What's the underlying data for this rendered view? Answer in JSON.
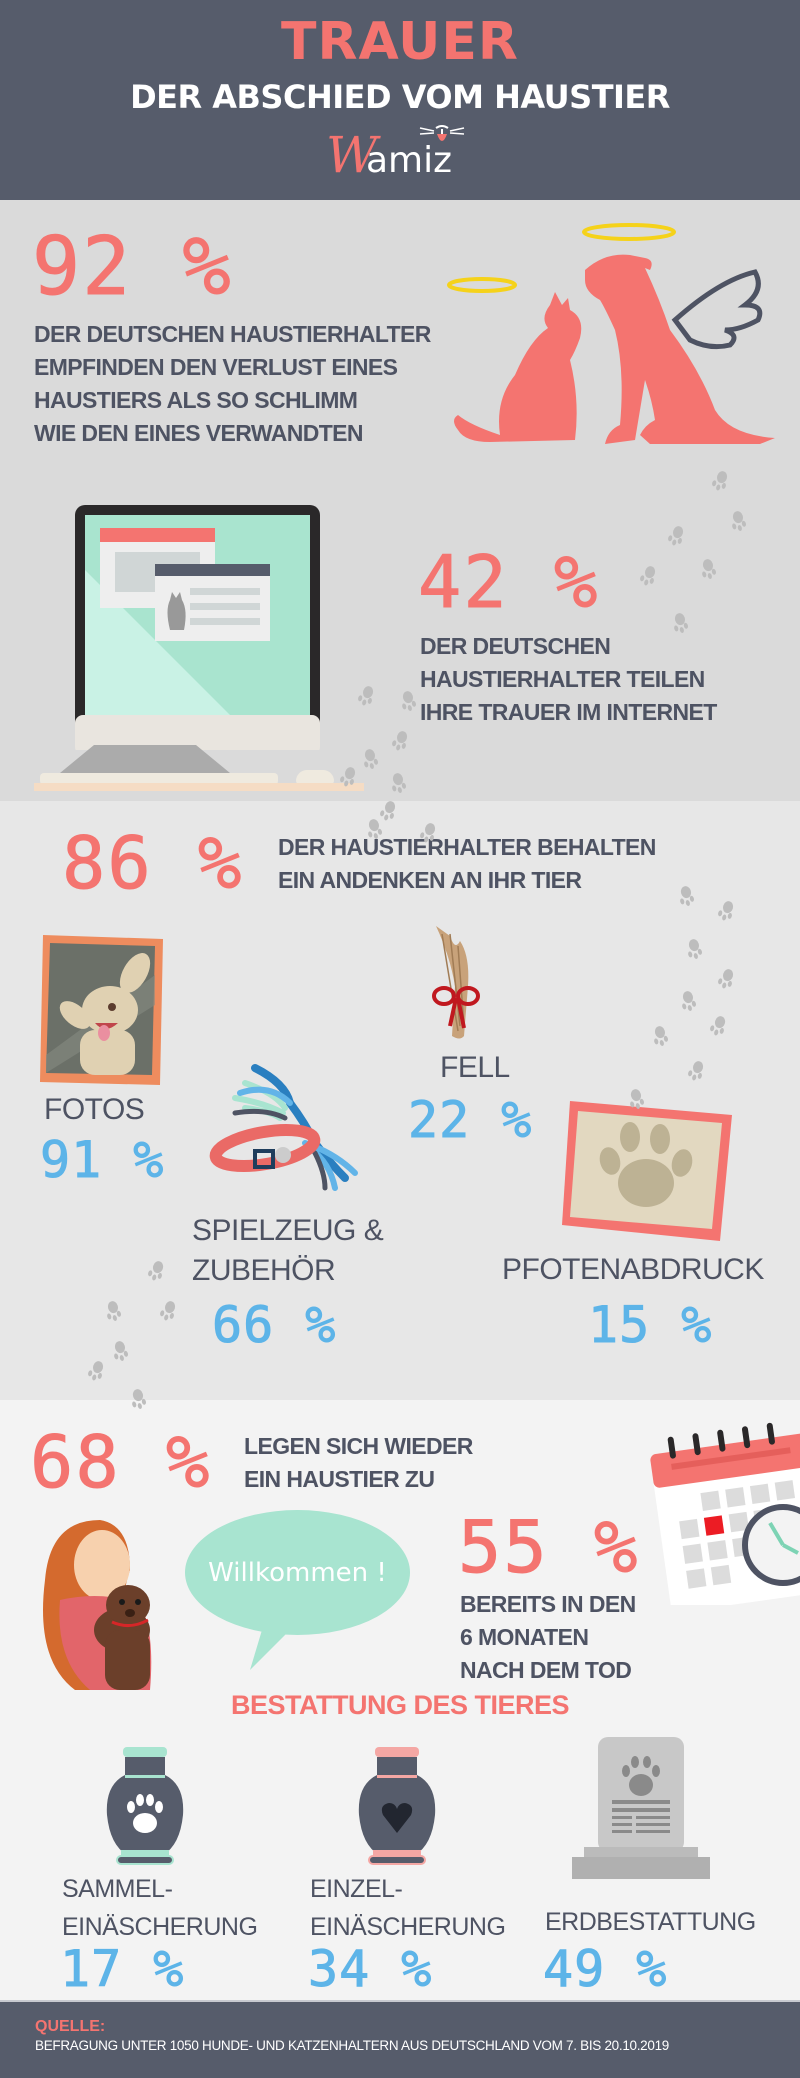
{
  "header": {
    "title": "TRAUER",
    "subtitle": "DER ABSCHIED VOM HAUSTIER",
    "logo_first": "W",
    "logo_rest": "amiz"
  },
  "stat_grief": {
    "value": "92 %",
    "text_lines": [
      "DER DEUTSCHEN HAUSTIERHALTER",
      "EMPFINDEN DEN VERLUST EINES",
      "HAUSTIERS ALS SO SCHLIMM",
      "WIE DEN EINES VERWANDTEN"
    ]
  },
  "stat_internet": {
    "value": "42 %",
    "text_lines": [
      "DER DEUTSCHEN",
      "HAUSTIERHALTER TEILEN",
      "IHRE TRAUER IM INTERNET"
    ]
  },
  "stat_keepsake": {
    "value": "86 %",
    "text_lines": [
      "DER HAUSTIERHALTER BEHALTEN",
      "EIN ANDENKEN AN IHR TIER"
    ],
    "items": [
      {
        "label": "FOTOS",
        "value": "91 %"
      },
      {
        "label": "FELL",
        "value": "22 %"
      },
      {
        "label_lines": [
          "SPIELZEUG &",
          "ZUBEHÖR"
        ],
        "value": "66 %"
      },
      {
        "label": "PFOTENABDRUCK",
        "value": "15 %"
      }
    ]
  },
  "stat_new_pet": {
    "value": "68 %",
    "text_lines": [
      "LEGEN SICH WIEDER",
      "EIN HAUSTIER ZU"
    ],
    "bubble": "Willkommen !",
    "sub_value": "55 %",
    "sub_text_lines": [
      "BEREITS IN DEN",
      "6 MONATEN",
      "NACH DEM TOD"
    ]
  },
  "burial": {
    "title": "BESTATTUNG DES TIERES",
    "items": [
      {
        "label_lines": [
          "SAMMEL-",
          "EINÄSCHERUNG"
        ],
        "value": "17 %"
      },
      {
        "label_lines": [
          "EINZEL-",
          "EINÄSCHERUNG"
        ],
        "value": "34 %"
      },
      {
        "label_lines": [
          "",
          "ERDBESTATTUNG"
        ],
        "value": "49 %"
      }
    ]
  },
  "footer": {
    "source_label": "QUELLE:",
    "source_text": "BEFRAGUNG UNTER 1050 HUNDE- UND KATZENHALTERN AUS DEUTSCHLAND VOM 7. BIS 20.10.2019"
  },
  "colors": {
    "dark": "#565c6b",
    "accent_red": "#f47470",
    "accent_blue": "#5db4e8",
    "mint": "#a8e4d0",
    "halo": "#f5d21a"
  }
}
